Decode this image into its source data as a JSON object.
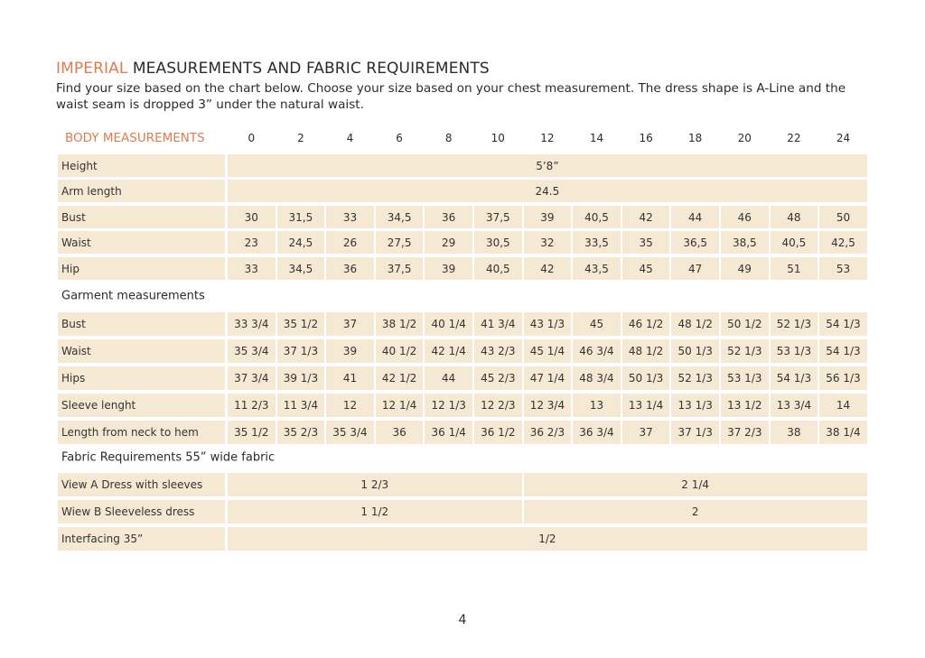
{
  "title": {
    "accent": "IMPERIAL",
    "rest": " MEASUREMENTS AND FABRIC REQUIREMENTS"
  },
  "intro": "Find your size based on the chart below. Choose your size based on your chest measurement. The dress shape is A-Line and the waist seam is dropped 3” under the natural waist.",
  "chart_data": {
    "type": "table",
    "body_header": "BODY MEASUREMENTS",
    "sizes": [
      "0",
      "2",
      "4",
      "6",
      "8",
      "10",
      "12",
      "14",
      "16",
      "18",
      "20",
      "22",
      "24"
    ],
    "body_rows": [
      {
        "label": "Height",
        "span_value": "5’8”"
      },
      {
        "label": "Arm length",
        "span_value": "24.5"
      },
      {
        "label": "Bust",
        "values": [
          "30",
          "31,5",
          "33",
          "34,5",
          "36",
          "37,5",
          "39",
          "40,5",
          "42",
          "44",
          "46",
          "48",
          "50"
        ]
      },
      {
        "label": "Waist",
        "values": [
          "23",
          "24,5",
          "26",
          "27,5",
          "29",
          "30,5",
          "32",
          "33,5",
          "35",
          "36,5",
          "38,5",
          "40,5",
          "42,5"
        ]
      },
      {
        "label": "Hip",
        "values": [
          "33",
          "34,5",
          "36",
          "37,5",
          "39",
          "40,5",
          "42",
          "43,5",
          "45",
          "47",
          "49",
          "51",
          "53"
        ]
      }
    ],
    "garment_title": "Garment measurements",
    "garment_rows": [
      {
        "label": "Bust",
        "values": [
          "33 3/4",
          "35 1/2",
          "37",
          "38 1/2",
          "40 1/4",
          "41 3/4",
          "43 1/3",
          "45",
          "46 1/2",
          "48 1/2",
          "50 1/2",
          "52 1/3",
          "54 1/3"
        ]
      },
      {
        "label": "Waist",
        "values": [
          "35 3/4",
          "37 1/3",
          "39",
          "40 1/2",
          "42 1/4",
          "43 2/3",
          "45 1/4",
          "46 3/4",
          "48 1/2",
          "50 1/3",
          "52 1/3",
          "53 1/3",
          "54 1/3"
        ]
      },
      {
        "label": "Hips",
        "values": [
          "37 3/4",
          "39 1/3",
          "41",
          "42 1/2",
          "44",
          "45 2/3",
          "47 1/4",
          "48 3/4",
          "50 1/3",
          "52 1/3",
          "53 1/3",
          "54 1/3",
          "56 1/3"
        ]
      },
      {
        "label": "Sleeve lenght",
        "values": [
          "11 2/3",
          "11 3/4",
          "12",
          "12 1/4",
          "12 1/3",
          "12 2/3",
          "12 3/4",
          "13",
          "13 1/4",
          "13 1/3",
          "13 1/2",
          "13 3/4",
          "14"
        ]
      },
      {
        "label": "Length from neck to hem",
        "values": [
          "35 1/2",
          "35 2/3",
          "35 3/4",
          "36",
          "36 1/4",
          "36 1/2",
          "36 2/3",
          "36 3/4",
          "37",
          "37 1/3",
          "37 2/3",
          "38",
          "38 1/4"
        ]
      }
    ],
    "fabric_title": "Fabric Requirements 55” wide fabric",
    "fabric_rows": [
      {
        "label": "View A Dress with sleeves",
        "values": [
          "1 2/3",
          "2 1/4"
        ]
      },
      {
        "label": "Wiew B Sleeveless dress",
        "values": [
          "1 1/2",
          "2"
        ]
      },
      {
        "label": "Interfacing 35”",
        "span_value": "1/2"
      }
    ]
  },
  "page_number": "4",
  "colors": {
    "accent": "#e07b4f",
    "cell": "#f6e9d3",
    "text": "#2b2b2b"
  }
}
